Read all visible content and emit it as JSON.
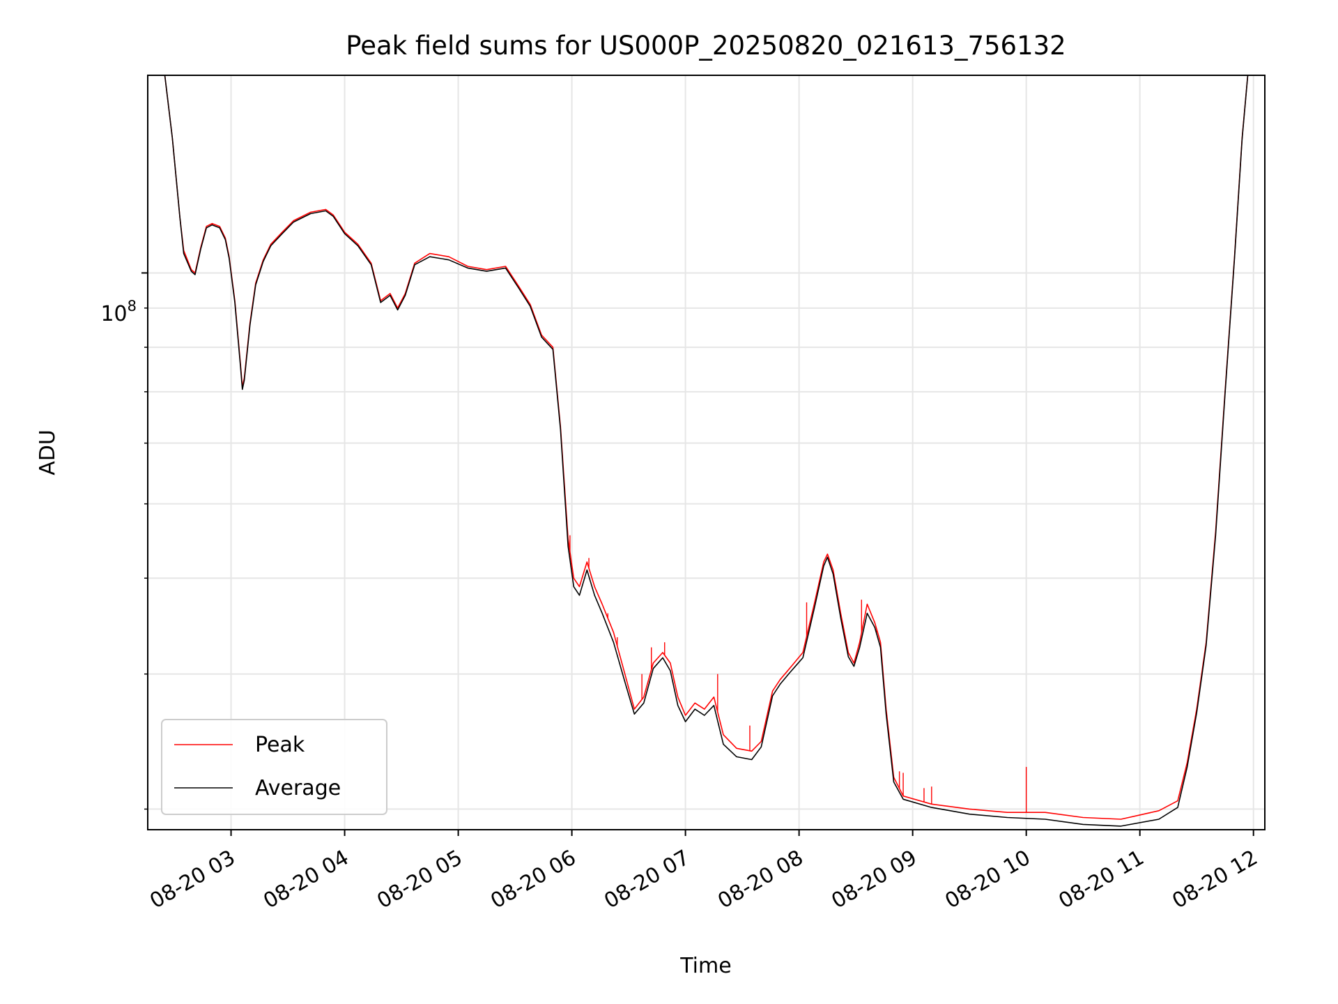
{
  "chart_data": {
    "type": "line",
    "title": "Peak field sums for US000P_20250820_021613_756132",
    "xlabel": "Time",
    "ylabel": "ADU",
    "yscale": "log",
    "y_tick_label": {
      "base": "10",
      "exponent": "8",
      "value": 100000000
    },
    "x_tick_labels": [
      {
        "label": "08-20 03",
        "time": "2025-08-20T03:00"
      },
      {
        "label": "08-20 04",
        "time": "2025-08-20T04:00"
      },
      {
        "label": "08-20 05",
        "time": "2025-08-20T05:00"
      },
      {
        "label": "08-20 06",
        "time": "2025-08-20T06:00"
      },
      {
        "label": "08-20 07",
        "time": "2025-08-20T07:00"
      },
      {
        "label": "08-20 08",
        "time": "2025-08-20T08:00"
      },
      {
        "label": "08-20 09",
        "time": "2025-08-20T09:00"
      },
      {
        "label": "08-20 10",
        "time": "2025-08-20T10:00"
      },
      {
        "label": "08-20 11",
        "time": "2025-08-20T11:00"
      },
      {
        "label": "08-20 12",
        "time": "2025-08-20T12:00"
      }
    ],
    "xlim": [
      "2025-08-20T02:16",
      "2025-08-20T12:06"
    ],
    "ylim": [
      18800000,
      181000000
    ],
    "grid": true,
    "legend": {
      "position": "lower-left"
    },
    "series": [
      {
        "name": "Peak",
        "color": "#ff0000",
        "points": [
          [
            "2025-08-20T02:16",
            181000000
          ],
          [
            "2025-08-20T02:25",
            181000000
          ],
          [
            "2025-08-20T02:29",
            150000000
          ],
          [
            "2025-08-20T02:33",
            118000000
          ],
          [
            "2025-08-20T02:35",
            107000000
          ],
          [
            "2025-08-20T02:39",
            101000000
          ],
          [
            "2025-08-20T02:41",
            100000000
          ],
          [
            "2025-08-20T02:44",
            108000000
          ],
          [
            "2025-08-20T02:47",
            115000000
          ],
          [
            "2025-08-20T02:50",
            116000000
          ],
          [
            "2025-08-20T02:54",
            115000000
          ],
          [
            "2025-08-20T02:57",
            111000000
          ],
          [
            "2025-08-20T02:59",
            105000000
          ],
          [
            "2025-08-20T03:02",
            92000000
          ],
          [
            "2025-08-20T03:05",
            76000000
          ],
          [
            "2025-08-20T03:06",
            71000000
          ],
          [
            "2025-08-20T03:07",
            73000000
          ],
          [
            "2025-08-20T03:10",
            86000000
          ],
          [
            "2025-08-20T03:13",
            97000000
          ],
          [
            "2025-08-20T03:17",
            104000000
          ],
          [
            "2025-08-20T03:21",
            109000000
          ],
          [
            "2025-08-20T03:27",
            113000000
          ],
          [
            "2025-08-20T03:33",
            117000000
          ],
          [
            "2025-08-20T03:42",
            120000000
          ],
          [
            "2025-08-20T03:50",
            121000000
          ],
          [
            "2025-08-20T03:54",
            119000000
          ],
          [
            "2025-08-20T04:00",
            113000000
          ],
          [
            "2025-08-20T04:07",
            109000000
          ],
          [
            "2025-08-20T04:14",
            103000000
          ],
          [
            "2025-08-20T04:19",
            92000000
          ],
          [
            "2025-08-20T04:24",
            94000000
          ],
          [
            "2025-08-20T04:28",
            90000000
          ],
          [
            "2025-08-20T04:32",
            94000000
          ],
          [
            "2025-08-20T04:37",
            103000000
          ],
          [
            "2025-08-20T04:45",
            106000000
          ],
          [
            "2025-08-20T04:55",
            105000000
          ],
          [
            "2025-08-20T05:05",
            102000000
          ],
          [
            "2025-08-20T05:15",
            101000000
          ],
          [
            "2025-08-20T05:25",
            102000000
          ],
          [
            "2025-08-20T05:32",
            96000000
          ],
          [
            "2025-08-20T05:38",
            91000000
          ],
          [
            "2025-08-20T05:44",
            83000000
          ],
          [
            "2025-08-20T05:50",
            80000000
          ],
          [
            "2025-08-20T05:54",
            63000000
          ],
          [
            "2025-08-20T05:58",
            45000000
          ],
          [
            "2025-08-20T06:01",
            40000000
          ],
          [
            "2025-08-20T06:04",
            39000000
          ],
          [
            "2025-08-20T06:08",
            42000000
          ],
          [
            "2025-08-20T06:12",
            39000000
          ],
          [
            "2025-08-20T06:16",
            37000000
          ],
          [
            "2025-08-20T06:22",
            34000000
          ],
          [
            "2025-08-20T06:28",
            30000000
          ],
          [
            "2025-08-20T06:33",
            27000000
          ],
          [
            "2025-08-20T06:38",
            28000000
          ],
          [
            "2025-08-20T06:43",
            31000000
          ],
          [
            "2025-08-20T06:48",
            32000000
          ],
          [
            "2025-08-20T06:52",
            31000000
          ],
          [
            "2025-08-20T06:56",
            28000000
          ],
          [
            "2025-08-20T07:00",
            26500000
          ],
          [
            "2025-08-20T07:05",
            27500000
          ],
          [
            "2025-08-20T07:10",
            27000000
          ],
          [
            "2025-08-20T07:15",
            28000000
          ],
          [
            "2025-08-20T07:20",
            25000000
          ],
          [
            "2025-08-20T07:27",
            24000000
          ],
          [
            "2025-08-20T07:35",
            23800000
          ],
          [
            "2025-08-20T07:40",
            24500000
          ],
          [
            "2025-08-20T07:46",
            28500000
          ],
          [
            "2025-08-20T07:50",
            29500000
          ],
          [
            "2025-08-20T07:55",
            30500000
          ],
          [
            "2025-08-20T08:02",
            32000000
          ],
          [
            "2025-08-20T08:08",
            37000000
          ],
          [
            "2025-08-20T08:13",
            42000000
          ],
          [
            "2025-08-20T08:15",
            43000000
          ],
          [
            "2025-08-20T08:18",
            41000000
          ],
          [
            "2025-08-20T08:22",
            36000000
          ],
          [
            "2025-08-20T08:26",
            32000000
          ],
          [
            "2025-08-20T08:29",
            31000000
          ],
          [
            "2025-08-20T08:32",
            33000000
          ],
          [
            "2025-08-20T08:36",
            37000000
          ],
          [
            "2025-08-20T08:40",
            35000000
          ],
          [
            "2025-08-20T08:43",
            33000000
          ],
          [
            "2025-08-20T08:46",
            27000000
          ],
          [
            "2025-08-20T08:50",
            22000000
          ],
          [
            "2025-08-20T08:55",
            20800000
          ],
          [
            "2025-08-20T09:10",
            20300000
          ],
          [
            "2025-08-20T09:30",
            20000000
          ],
          [
            "2025-08-20T09:50",
            19800000
          ],
          [
            "2025-08-20T10:10",
            19800000
          ],
          [
            "2025-08-20T10:30",
            19500000
          ],
          [
            "2025-08-20T10:50",
            19400000
          ],
          [
            "2025-08-20T11:10",
            19900000
          ],
          [
            "2025-08-20T11:20",
            20500000
          ],
          [
            "2025-08-20T11:25",
            23000000
          ],
          [
            "2025-08-20T11:30",
            27000000
          ],
          [
            "2025-08-20T11:35",
            33000000
          ],
          [
            "2025-08-20T11:40",
            46000000
          ],
          [
            "2025-08-20T11:45",
            70000000
          ],
          [
            "2025-08-20T11:50",
            105000000
          ],
          [
            "2025-08-20T11:54",
            150000000
          ],
          [
            "2025-08-20T11:57",
            181000000
          ],
          [
            "2025-08-20T12:06",
            181000000
          ]
        ],
        "spikes": [
          [
            "2025-08-20T05:59",
            45500000
          ],
          [
            "2025-08-20T06:09",
            42500000
          ],
          [
            "2025-08-20T06:14",
            38000000
          ],
          [
            "2025-08-20T06:19",
            36000000
          ],
          [
            "2025-08-20T06:24",
            33500000
          ],
          [
            "2025-08-20T06:37",
            30000000
          ],
          [
            "2025-08-20T06:42",
            32500000
          ],
          [
            "2025-08-20T06:49",
            33000000
          ],
          [
            "2025-08-20T07:17",
            30000000
          ],
          [
            "2025-08-20T07:34",
            25700000
          ],
          [
            "2025-08-20T08:04",
            37200000
          ],
          [
            "2025-08-20T08:33",
            37500000
          ],
          [
            "2025-08-20T08:41",
            34000000
          ],
          [
            "2025-08-20T08:53",
            22400000
          ],
          [
            "2025-08-20T08:55",
            22300000
          ],
          [
            "2025-08-20T09:06",
            21300000
          ],
          [
            "2025-08-20T09:10",
            21400000
          ],
          [
            "2025-08-20T10:00",
            22700000
          ]
        ]
      },
      {
        "name": "Average",
        "color": "#000000",
        "points": [
          [
            "2025-08-20T02:16",
            181000000
          ],
          [
            "2025-08-20T02:25",
            181000000
          ],
          [
            "2025-08-20T02:29",
            150000000
          ],
          [
            "2025-08-20T02:33",
            118000000
          ],
          [
            "2025-08-20T02:35",
            106000000
          ],
          [
            "2025-08-20T02:39",
            100500000
          ],
          [
            "2025-08-20T02:41",
            99500000
          ],
          [
            "2025-08-20T02:44",
            107500000
          ],
          [
            "2025-08-20T02:47",
            114500000
          ],
          [
            "2025-08-20T02:50",
            115500000
          ],
          [
            "2025-08-20T02:54",
            114500000
          ],
          [
            "2025-08-20T02:57",
            110500000
          ],
          [
            "2025-08-20T02:59",
            104500000
          ],
          [
            "2025-08-20T03:02",
            91500000
          ],
          [
            "2025-08-20T03:05",
            75500000
          ],
          [
            "2025-08-20T03:06",
            70500000
          ],
          [
            "2025-08-20T03:07",
            72500000
          ],
          [
            "2025-08-20T03:10",
            85500000
          ],
          [
            "2025-08-20T03:13",
            96500000
          ],
          [
            "2025-08-20T03:17",
            103500000
          ],
          [
            "2025-08-20T03:21",
            108500000
          ],
          [
            "2025-08-20T03:27",
            112500000
          ],
          [
            "2025-08-20T03:33",
            116500000
          ],
          [
            "2025-08-20T03:42",
            119500000
          ],
          [
            "2025-08-20T03:50",
            120500000
          ],
          [
            "2025-08-20T03:54",
            118500000
          ],
          [
            "2025-08-20T04:00",
            112500000
          ],
          [
            "2025-08-20T04:07",
            108500000
          ],
          [
            "2025-08-20T04:14",
            102500000
          ],
          [
            "2025-08-20T04:19",
            91500000
          ],
          [
            "2025-08-20T04:24",
            93500000
          ],
          [
            "2025-08-20T04:28",
            89500000
          ],
          [
            "2025-08-20T04:32",
            93500000
          ],
          [
            "2025-08-20T04:37",
            102500000
          ],
          [
            "2025-08-20T04:45",
            105000000
          ],
          [
            "2025-08-20T04:55",
            104000000
          ],
          [
            "2025-08-20T05:05",
            101500000
          ],
          [
            "2025-08-20T05:15",
            100500000
          ],
          [
            "2025-08-20T05:25",
            101500000
          ],
          [
            "2025-08-20T05:32",
            95500000
          ],
          [
            "2025-08-20T05:38",
            90500000
          ],
          [
            "2025-08-20T05:44",
            82500000
          ],
          [
            "2025-08-20T05:50",
            79500000
          ],
          [
            "2025-08-20T05:54",
            62500000
          ],
          [
            "2025-08-20T05:58",
            44000000
          ],
          [
            "2025-08-20T06:01",
            39000000
          ],
          [
            "2025-08-20T06:04",
            38000000
          ],
          [
            "2025-08-20T06:08",
            41000000
          ],
          [
            "2025-08-20T06:12",
            38000000
          ],
          [
            "2025-08-20T06:16",
            36000000
          ],
          [
            "2025-08-20T06:22",
            33000000
          ],
          [
            "2025-08-20T06:28",
            29300000
          ],
          [
            "2025-08-20T06:33",
            26600000
          ],
          [
            "2025-08-20T06:38",
            27500000
          ],
          [
            "2025-08-20T06:43",
            30500000
          ],
          [
            "2025-08-20T06:48",
            31500000
          ],
          [
            "2025-08-20T06:52",
            30300000
          ],
          [
            "2025-08-20T06:56",
            27300000
          ],
          [
            "2025-08-20T07:00",
            26000000
          ],
          [
            "2025-08-20T07:05",
            27000000
          ],
          [
            "2025-08-20T07:10",
            26500000
          ],
          [
            "2025-08-20T07:15",
            27300000
          ],
          [
            "2025-08-20T07:20",
            24300000
          ],
          [
            "2025-08-20T07:27",
            23400000
          ],
          [
            "2025-08-20T07:35",
            23200000
          ],
          [
            "2025-08-20T07:40",
            24100000
          ],
          [
            "2025-08-20T07:46",
            28100000
          ],
          [
            "2025-08-20T07:50",
            29100000
          ],
          [
            "2025-08-20T07:55",
            30100000
          ],
          [
            "2025-08-20T08:02",
            31500000
          ],
          [
            "2025-08-20T08:08",
            36500000
          ],
          [
            "2025-08-20T08:13",
            41500000
          ],
          [
            "2025-08-20T08:15",
            42600000
          ],
          [
            "2025-08-20T08:18",
            40500000
          ],
          [
            "2025-08-20T08:22",
            35500000
          ],
          [
            "2025-08-20T08:26",
            31600000
          ],
          [
            "2025-08-20T08:29",
            30700000
          ],
          [
            "2025-08-20T08:32",
            32500000
          ],
          [
            "2025-08-20T08:36",
            36000000
          ],
          [
            "2025-08-20T08:40",
            34500000
          ],
          [
            "2025-08-20T08:43",
            32500000
          ],
          [
            "2025-08-20T08:46",
            26600000
          ],
          [
            "2025-08-20T08:50",
            21700000
          ],
          [
            "2025-08-20T08:55",
            20600000
          ],
          [
            "2025-08-20T09:10",
            20100000
          ],
          [
            "2025-08-20T09:30",
            19700000
          ],
          [
            "2025-08-20T09:50",
            19500000
          ],
          [
            "2025-08-20T10:10",
            19400000
          ],
          [
            "2025-08-20T10:30",
            19100000
          ],
          [
            "2025-08-20T10:50",
            19000000
          ],
          [
            "2025-08-20T11:10",
            19400000
          ],
          [
            "2025-08-20T11:20",
            20100000
          ],
          [
            "2025-08-20T11:25",
            22700000
          ],
          [
            "2025-08-20T11:30",
            26700000
          ],
          [
            "2025-08-20T11:35",
            32700000
          ],
          [
            "2025-08-20T11:40",
            45500000
          ],
          [
            "2025-08-20T11:45",
            69500000
          ],
          [
            "2025-08-20T11:50",
            104500000
          ],
          [
            "2025-08-20T11:54",
            149500000
          ],
          [
            "2025-08-20T11:57",
            181000000
          ],
          [
            "2025-08-20T12:06",
            181000000
          ]
        ]
      }
    ]
  }
}
